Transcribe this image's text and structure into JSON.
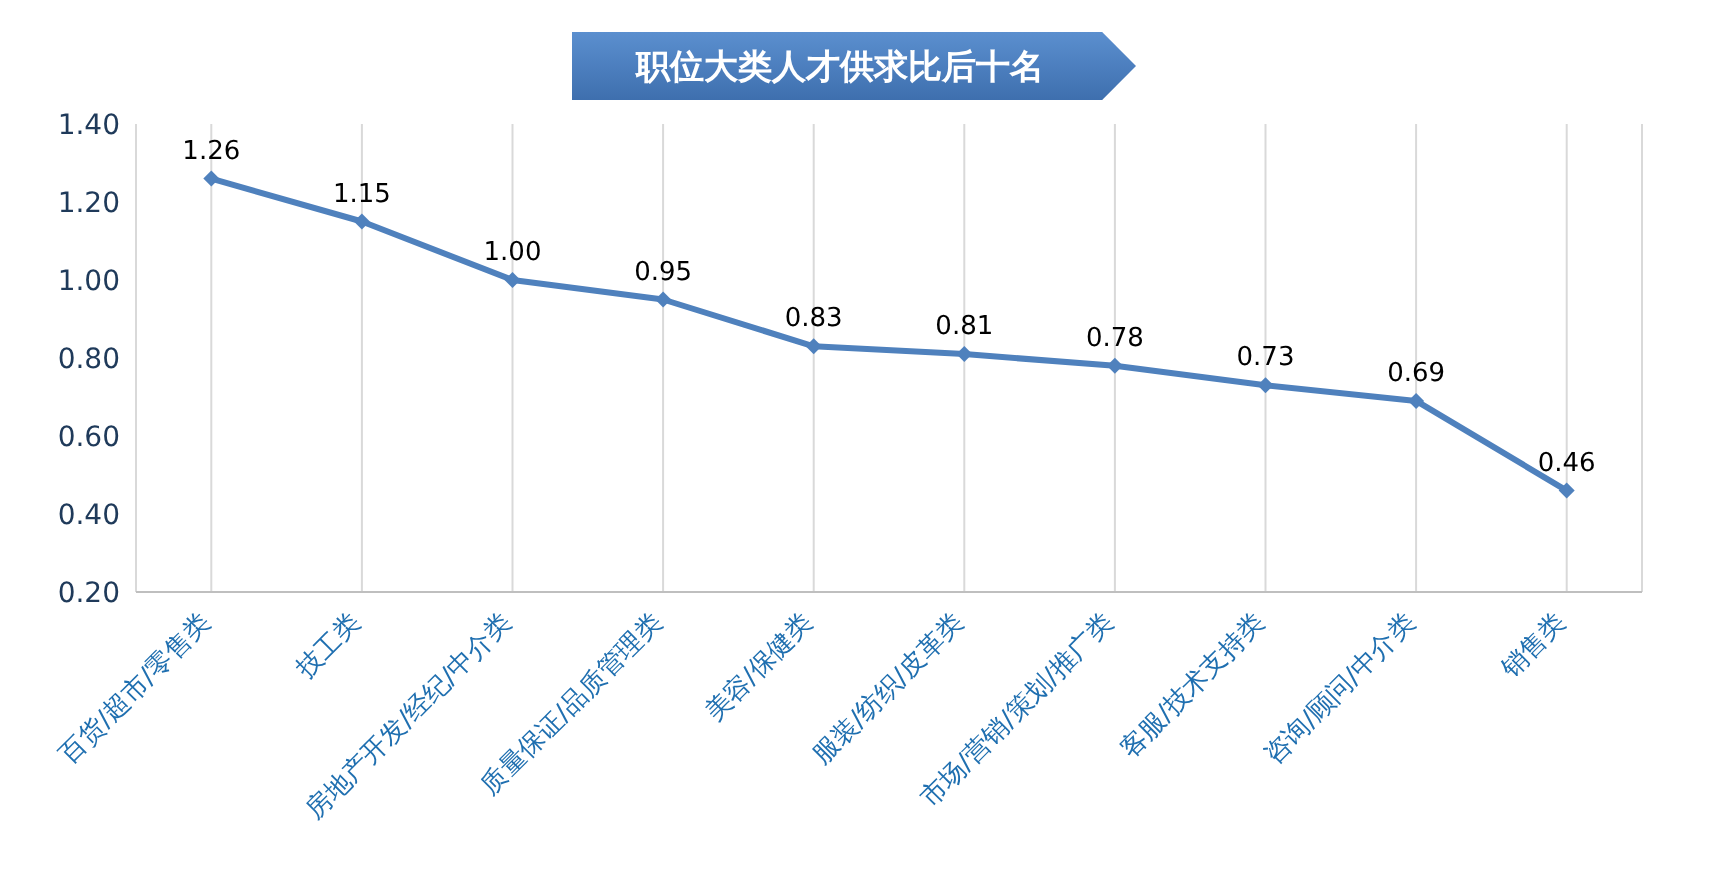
{
  "chart_data": {
    "type": "line",
    "title": "职位大类人才供求比后十名",
    "categories": [
      "百货/超市/零售类",
      "技工类",
      "房地产开发/经纪/中介类",
      "质量保证/品质管理类",
      "美容/保健类",
      "服装/纺织/皮革类",
      "市场/营销/策划/推广类",
      "客服/技术支持类",
      "咨询/顾问/中介类",
      "销售类"
    ],
    "series": [
      {
        "color": "#4f81bd",
        "values": [
          1.26,
          1.15,
          1.0,
          0.95,
          0.83,
          0.81,
          0.78,
          0.73,
          0.69,
          0.46
        ]
      }
    ],
    "ylim": [
      0.2,
      1.4
    ],
    "yticks": [
      {
        "value": 0.2,
        "label": "0.20"
      },
      {
        "value": 0.4,
        "label": "0.40"
      },
      {
        "value": 0.6,
        "label": "0.60"
      },
      {
        "value": 0.8,
        "label": "0.80"
      },
      {
        "value": 1.0,
        "label": "1.00"
      },
      {
        "value": 1.2,
        "label": "1.20"
      },
      {
        "value": 1.4,
        "label": "1.40"
      }
    ],
    "value_labels": [
      "1.26",
      "1.15",
      "1.00",
      "0.95",
      "0.83",
      "0.81",
      "0.78",
      "0.73",
      "0.69",
      "0.46"
    ],
    "grid": "x",
    "marker": "diamond",
    "line_style": "solid",
    "legend": false
  }
}
